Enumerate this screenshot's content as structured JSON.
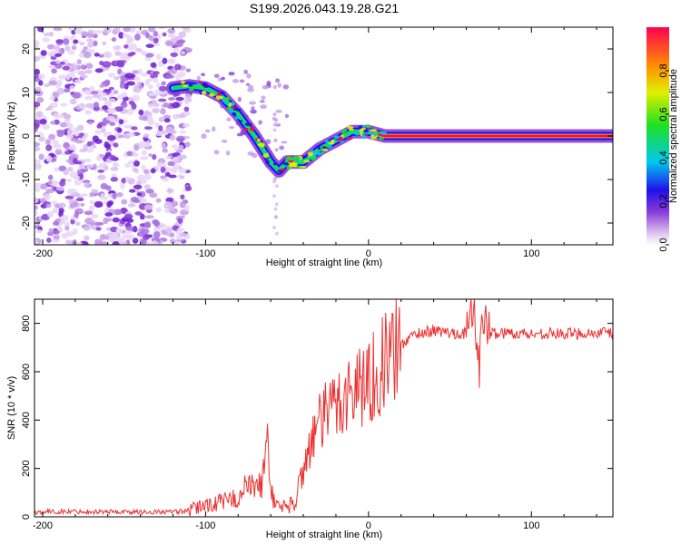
{
  "title": "S199.2026.043.19.28.G21",
  "chart_data": [
    {
      "type": "heatmap",
      "name": "spectrogram",
      "title": "S199.2026.043.19.28.G21",
      "xlabel": "Height of straight line (km)",
      "ylabel": "Frequency (Hz)",
      "xlim": [
        -205,
        150
      ],
      "ylim": [
        -25,
        25
      ],
      "xticks": [
        -200,
        -100,
        0,
        100
      ],
      "yticks": [
        20,
        10,
        0,
        -10,
        -20
      ],
      "colorbar": {
        "label": "Normalized spectral amplitude",
        "range": [
          0,
          1
        ],
        "ticks": [
          "0.0",
          "0.2",
          "0.4",
          "0.6",
          "0.8"
        ]
      },
      "dominant_frequency_track": {
        "x": [
          -120,
          -110,
          -100,
          -90,
          -80,
          -70,
          -60,
          -55,
          -50,
          -45,
          -40,
          -30,
          -20,
          -10,
          0,
          10,
          50,
          100,
          150
        ],
        "y": [
          11,
          11.5,
          11,
          9,
          5,
          0,
          -6,
          -8,
          -6,
          -6,
          -6,
          -3,
          -1,
          1,
          1,
          0,
          0,
          0,
          0
        ]
      },
      "noise_region_x": [
        -205,
        -110
      ]
    },
    {
      "type": "line",
      "name": "snr",
      "xlabel": "Height of straight line (km)",
      "ylabel": "SNR (10 * v/v)",
      "xlim": [
        -205,
        150
      ],
      "ylim": [
        0,
        900
      ],
      "xticks": [
        -200,
        -100,
        0,
        100
      ],
      "yticks": [
        0,
        200,
        400,
        600,
        800
      ],
      "series": [
        {
          "name": "SNR",
          "color": "#ee3030",
          "x": [
            -205,
            -180,
            -150,
            -120,
            -110,
            -100,
            -90,
            -80,
            -75,
            -70,
            -65,
            -62,
            -60,
            -58,
            -55,
            -50,
            -45,
            -42,
            -40,
            -38,
            -35,
            -30,
            -25,
            -20,
            -15,
            -10,
            -5,
            0,
            5,
            10,
            15,
            20,
            25,
            30,
            40,
            50,
            60,
            65,
            68,
            70,
            75,
            80,
            90,
            100,
            110,
            120,
            130,
            140,
            150
          ],
          "y": [
            20,
            22,
            20,
            20,
            25,
            50,
            60,
            80,
            130,
            120,
            140,
            350,
            120,
            60,
            50,
            40,
            60,
            150,
            200,
            250,
            320,
            380,
            430,
            470,
            500,
            520,
            550,
            560,
            600,
            640,
            680,
            710,
            740,
            760,
            770,
            760,
            760,
            850,
            620,
            820,
            760,
            760,
            760,
            755,
            760,
            755,
            760,
            760,
            760
          ]
        }
      ]
    }
  ]
}
